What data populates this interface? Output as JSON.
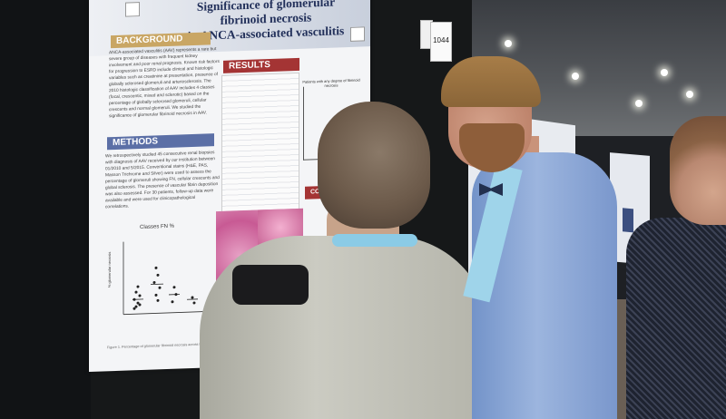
{
  "poster": {
    "title_line1": "Significance of glomerular fibrinoid necrosis",
    "title_line2": "in ANCA-associated vasculitis",
    "authors": "",
    "sections": {
      "background": "BACKGROUND",
      "methods": "METHODS",
      "results": "RESULTS",
      "conclusions": "CONCLUS"
    },
    "background_text": "ANCA-associated vasculitis (AAV) represents a rare but severe group of diseases with frequent kidney involvement and poor renal prognosis. Known risk factors for progression to ESRD include clinical and histologic variables such as creatinine at presentation, presence of globally sclerosed glomeruli and arteriosclerosis. The 2010 histologic classification of AAV includes 4 classes (focal, crescentic, mixed and sclerotic) based on the percentage of globally sclerosed glomeruli, cellular crescents and normal glomeruli. We studied the significance of glomerular fibrinoid necrosis in AAV.",
    "methods_text": "We retrospectively studied 45 consecutive renal biopsies with diagnosis of AAV received by our institution between 01/2010 and 5/2015. Conventional stains (H&E, PAS, Masson Trichrome and Silver) were used to assess the percentage of glomeruli showing FN, cellular crescents and global sclerosis. The presence of vascular fibrin deposition was also assessed. For 30 patients, follow-up data were available and were used for clinicopathological correlations.",
    "scatter_title": "Classes FN %",
    "scatter_ylabel": "% glomerular necrosis",
    "mini_chart_title": "Patients with any degree of fibrinoid necrosis",
    "caption": "Figure 1. Percentage of glomerular fibrinoid necrosis across the four classes"
  },
  "booth": {
    "number": "1044"
  },
  "colors": {
    "poster_title": "#22305a",
    "background_header": "#c9a664",
    "methods_header": "#5b6fa6",
    "results_header": "#a43434"
  }
}
